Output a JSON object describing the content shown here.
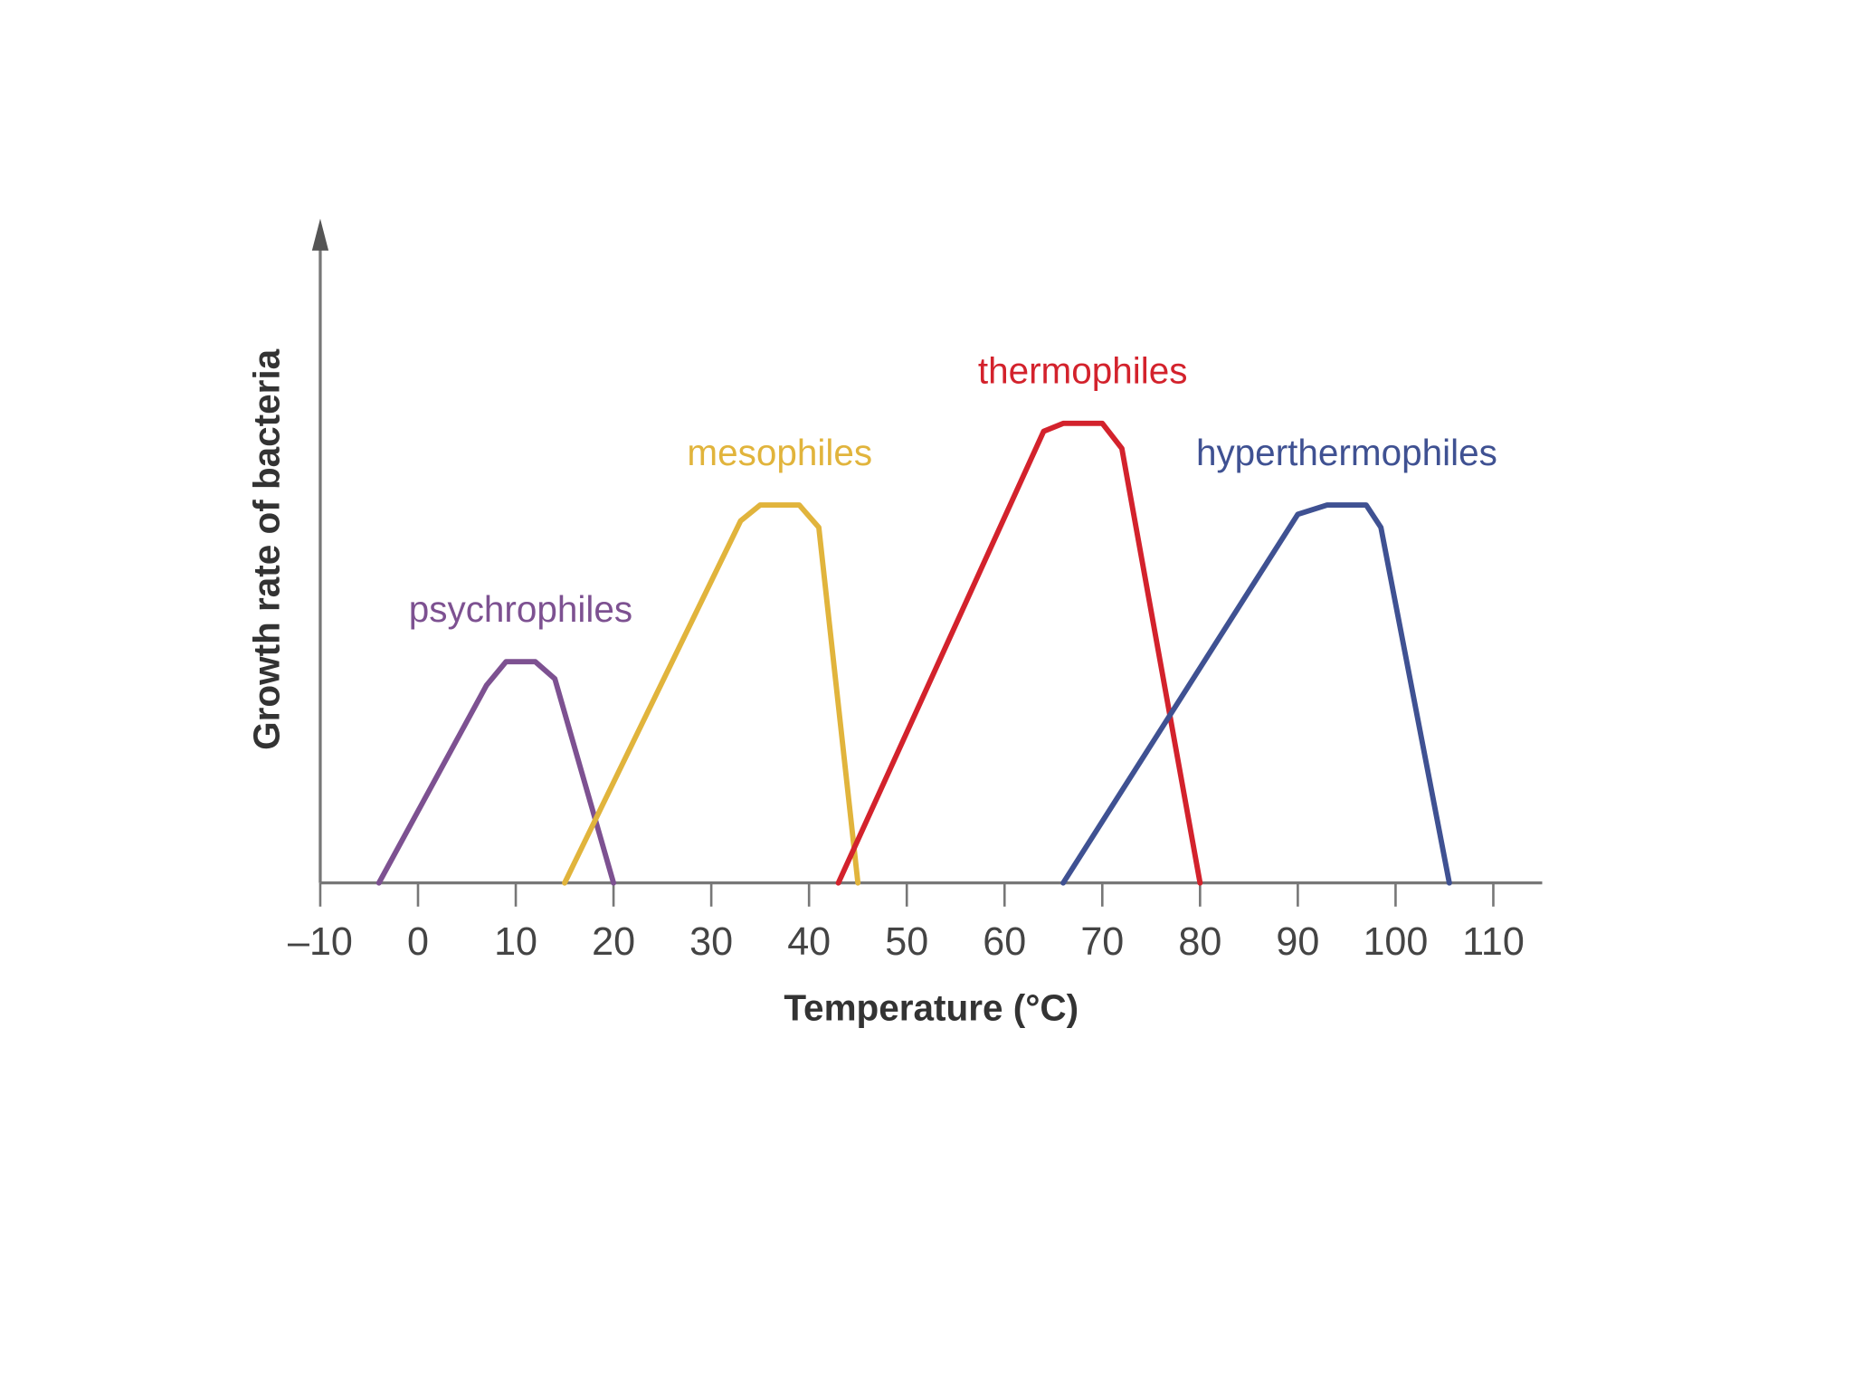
{
  "chart_data": {
    "type": "line",
    "x_label": "Temperature (°C)",
    "y_label": "Growth rate of bacteria",
    "xlim": [
      -10,
      115
    ],
    "ylim": [
      0,
      100
    ],
    "xticks": [
      {
        "value": -10,
        "label": "–10"
      },
      0,
      10,
      20,
      30,
      40,
      50,
      60,
      70,
      80,
      90,
      100,
      110
    ],
    "series": [
      {
        "name": "psychrophiles",
        "color": "#7d5191",
        "x": [
          -4,
          7,
          9,
          12,
          14,
          20
        ],
        "values": [
          0,
          30,
          33.6,
          33.6,
          31,
          0
        ]
      },
      {
        "name": "mesophiles",
        "color": "#e1b43c",
        "x": [
          15,
          33,
          35,
          39,
          41,
          45
        ],
        "values": [
          0,
          55,
          57.4,
          57.4,
          54,
          0
        ]
      },
      {
        "name": "thermophiles",
        "color": "#d3222c",
        "x": [
          43,
          64,
          66,
          70,
          72,
          80
        ],
        "values": [
          0,
          68.6,
          69.8,
          69.8,
          66,
          0
        ]
      },
      {
        "name": "hyperthermophiles",
        "color": "#3f5192",
        "x": [
          66,
          90,
          93,
          97,
          98.5,
          105.5
        ],
        "values": [
          0,
          56,
          57.4,
          57.4,
          54,
          0
        ]
      }
    ]
  }
}
